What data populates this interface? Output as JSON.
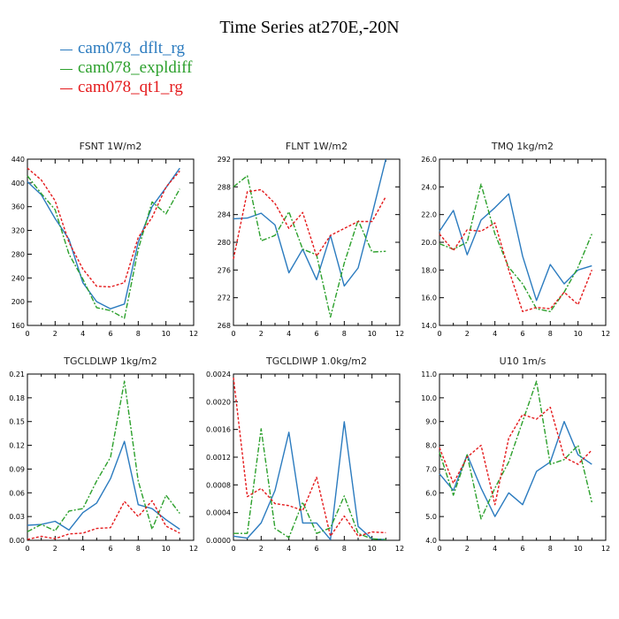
{
  "figure": {
    "title": "Time Series at270E,-20N",
    "legend": [
      {
        "label": "cam078_dflt_rg",
        "color": "#2b7bbf"
      },
      {
        "label": "cam078_expldiff",
        "color": "#2ca02c"
      },
      {
        "label": "cam078_qt1_rg",
        "color": "#e41a1c"
      }
    ]
  },
  "chart_data": [
    {
      "type": "line",
      "title": "FSNT   1W/m2",
      "x": [
        0,
        1,
        2,
        3,
        4,
        5,
        6,
        7,
        8,
        9,
        10,
        11
      ],
      "xlim": [
        0,
        12
      ],
      "xticks": [
        0,
        2,
        4,
        6,
        8,
        10,
        12
      ],
      "ylim": [
        160,
        440
      ],
      "yticks": [
        "160",
        "200",
        "240",
        "280",
        "320",
        "360",
        "400",
        "440"
      ],
      "series": [
        {
          "name": "cam078_dflt_rg",
          "values": [
            402,
            380,
            340,
            305,
            232,
            200,
            188,
            196,
            300,
            360,
            392,
            425
          ]
        },
        {
          "name": "cam078_expldiff",
          "values": [
            412,
            382,
            355,
            280,
            238,
            190,
            185,
            172,
            288,
            368,
            348,
            390
          ]
        },
        {
          "name": "cam078_qt1_rg",
          "values": [
            425,
            405,
            370,
            300,
            255,
            226,
            225,
            232,
            308,
            342,
            393,
            420
          ]
        }
      ]
    },
    {
      "type": "line",
      "title": "FLNT   1W/m2",
      "x": [
        0,
        1,
        2,
        3,
        4,
        5,
        6,
        7,
        8,
        9,
        10,
        11
      ],
      "xlim": [
        0,
        12
      ],
      "xticks": [
        0,
        2,
        4,
        6,
        8,
        10,
        12
      ],
      "ylim": [
        268,
        292
      ],
      "yticks": [
        "268",
        "272",
        "276",
        "280",
        "284",
        "288",
        "292"
      ],
      "series": [
        {
          "name": "cam078_dflt_rg",
          "values": [
            283.4,
            283.5,
            284.2,
            282.5,
            275.6,
            279.0,
            274.6,
            281.0,
            273.7,
            276.3,
            284.0,
            292.0
          ]
        },
        {
          "name": "cam078_expldiff",
          "values": [
            288.0,
            289.6,
            280.2,
            281.0,
            284.4,
            279.0,
            278.2,
            269.2,
            277.0,
            283.2,
            278.6,
            278.7
          ]
        },
        {
          "name": "cam078_qt1_rg",
          "values": [
            277.6,
            287.3,
            287.6,
            285.6,
            282.0,
            284.3,
            278.0,
            281.0,
            282.0,
            283.0,
            283.0,
            286.6
          ]
        }
      ]
    },
    {
      "type": "line",
      "title": "TMQ   1kg/m2",
      "x": [
        0,
        1,
        2,
        3,
        4,
        5,
        6,
        7,
        8,
        9,
        10,
        11
      ],
      "xlim": [
        0,
        12
      ],
      "xticks": [
        0,
        2,
        4,
        6,
        8,
        10,
        12
      ],
      "ylim": [
        14,
        26
      ],
      "yticks": [
        "14.0",
        "16.0",
        "18.0",
        "20.0",
        "22.0",
        "24.0",
        "26.0"
      ],
      "series": [
        {
          "name": "cam078_dflt_rg",
          "values": [
            20.8,
            22.3,
            19.1,
            21.6,
            22.5,
            23.5,
            19.0,
            15.8,
            18.4,
            17.0,
            18.0,
            18.3
          ]
        },
        {
          "name": "cam078_expldiff",
          "values": [
            19.9,
            19.5,
            20.0,
            24.2,
            20.6,
            18.2,
            17.0,
            15.2,
            15.0,
            16.4,
            18.2,
            20.6
          ]
        },
        {
          "name": "cam078_qt1_rg",
          "values": [
            20.6,
            19.4,
            20.9,
            20.8,
            21.4,
            18.0,
            15.0,
            15.3,
            15.2,
            16.4,
            15.5,
            18.0
          ]
        }
      ]
    },
    {
      "type": "line",
      "title": "TGCLDLWP   1kg/m2",
      "x": [
        0,
        1,
        2,
        3,
        4,
        5,
        6,
        7,
        8,
        9,
        10,
        11
      ],
      "xlim": [
        0,
        12
      ],
      "xticks": [
        0,
        2,
        4,
        6,
        8,
        10,
        12
      ],
      "ylim": [
        0,
        0.21
      ],
      "yticks": [
        "0.00",
        "0.03",
        "0.06",
        "0.09",
        "0.12",
        "0.15",
        "0.18",
        "0.21"
      ],
      "series": [
        {
          "name": "cam078_dflt_rg",
          "values": [
            0.019,
            0.02,
            0.024,
            0.013,
            0.035,
            0.047,
            0.078,
            0.125,
            0.045,
            0.04,
            0.026,
            0.014
          ]
        },
        {
          "name": "cam078_expldiff",
          "values": [
            0.011,
            0.02,
            0.012,
            0.037,
            0.04,
            0.075,
            0.105,
            0.201,
            0.075,
            0.014,
            0.057,
            0.034
          ]
        },
        {
          "name": "cam078_qt1_rg",
          "values": [
            0.001,
            0.005,
            0.002,
            0.008,
            0.009,
            0.015,
            0.016,
            0.049,
            0.03,
            0.05,
            0.018,
            0.009
          ]
        }
      ]
    },
    {
      "type": "line",
      "title": "TGCLDIWP   1.0kg/m2",
      "x": [
        0,
        1,
        2,
        3,
        4,
        5,
        6,
        7,
        8,
        9,
        10,
        11
      ],
      "xlim": [
        0,
        12
      ],
      "xticks": [
        0,
        2,
        4,
        6,
        8,
        10,
        12
      ],
      "ylim": [
        0,
        0.0024
      ],
      "yticks": [
        "0.0000",
        "0.0004",
        "0.0008",
        "0.0012",
        "0.0016",
        "0.0020",
        "0.0024"
      ],
      "series": [
        {
          "name": "cam078_dflt_rg",
          "values": [
            6e-05,
            3e-05,
            0.00025,
            0.00072,
            0.00156,
            0.00025,
            0.00025,
            1e-05,
            0.00171,
            0.0002,
            2e-05,
            1e-05
          ]
        },
        {
          "name": "cam078_expldiff",
          "values": [
            0.0001,
            0.0001,
            0.00161,
            0.00017,
            4e-05,
            0.00055,
            0.0001,
            0.00018,
            0.00064,
            0.0001,
            2e-05,
            1e-05
          ]
        },
        {
          "name": "cam078_qt1_rg",
          "values": [
            0.00235,
            0.00063,
            0.00075,
            0.00053,
            0.0005,
            0.00043,
            0.00091,
            6e-05,
            0.00035,
            6e-05,
            0.00012,
            0.00011
          ]
        }
      ]
    },
    {
      "type": "line",
      "title": "U10   1m/s",
      "x": [
        0,
        1,
        2,
        3,
        4,
        5,
        6,
        7,
        8,
        9,
        10,
        11
      ],
      "xlim": [
        0,
        12
      ],
      "xticks": [
        0,
        2,
        4,
        6,
        8,
        10,
        12
      ],
      "ylim": [
        4,
        11
      ],
      "yticks": [
        "4.0",
        "5.0",
        "6.0",
        "7.0",
        "8.0",
        "9.0",
        "10.0",
        "11.0"
      ],
      "series": [
        {
          "name": "cam078_dflt_rg",
          "values": [
            6.8,
            6.1,
            7.6,
            6.2,
            5.0,
            6.0,
            5.5,
            6.9,
            7.3,
            9.0,
            7.6,
            7.2
          ]
        },
        {
          "name": "cam078_expldiff",
          "values": [
            7.7,
            5.9,
            7.6,
            4.9,
            6.2,
            7.3,
            9.0,
            10.7,
            7.2,
            7.4,
            8.0,
            5.6
          ]
        },
        {
          "name": "cam078_qt1_rg",
          "values": [
            7.9,
            6.4,
            7.5,
            8.0,
            5.5,
            8.3,
            9.3,
            9.1,
            9.6,
            7.5,
            7.2,
            7.8
          ]
        }
      ]
    }
  ]
}
